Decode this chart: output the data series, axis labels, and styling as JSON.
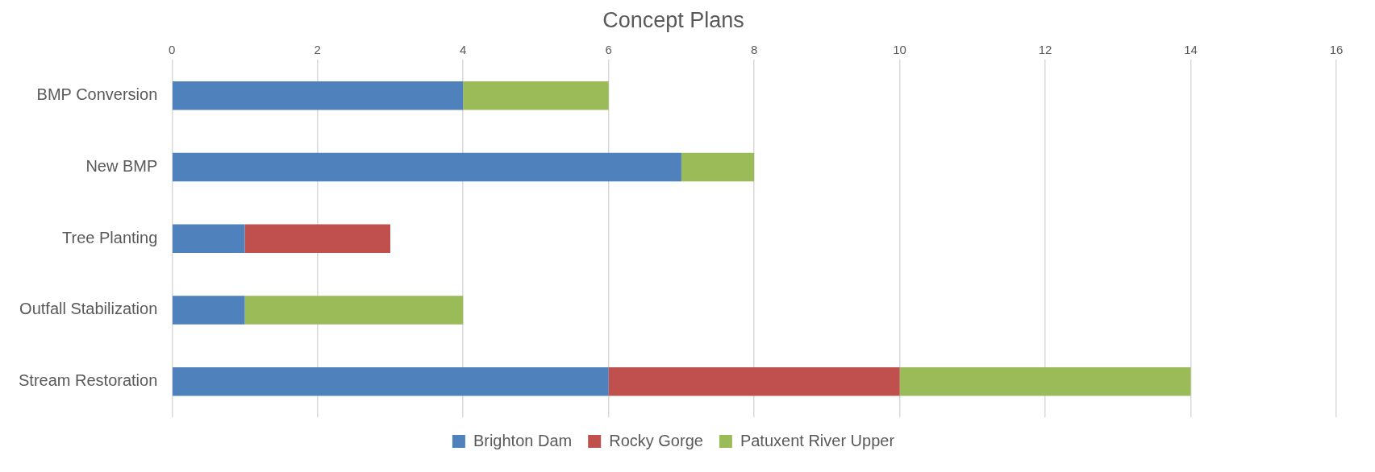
{
  "chart_data": {
    "type": "bar",
    "title": "Concept Plans",
    "orientation": "horizontal",
    "stacked": true,
    "categories": [
      "BMP Conversion",
      "New BMP",
      "Tree Planting",
      "Outfall Stabilization",
      "Stream Restoration"
    ],
    "series": [
      {
        "name": "Brighton Dam",
        "color": "#4f81bd",
        "values": [
          4,
          7,
          1,
          1,
          6
        ]
      },
      {
        "name": "Rocky Gorge",
        "color": "#c0504d",
        "values": [
          0,
          0,
          2,
          0,
          4
        ]
      },
      {
        "name": "Patuxent River Upper",
        "color": "#9bbb59",
        "values": [
          2,
          1,
          0,
          3,
          4
        ]
      }
    ],
    "xlim": [
      0,
      16
    ],
    "xticks": [
      0,
      2,
      4,
      6,
      8,
      10,
      12,
      14,
      16
    ],
    "grid": "x",
    "legend": "bottom"
  }
}
